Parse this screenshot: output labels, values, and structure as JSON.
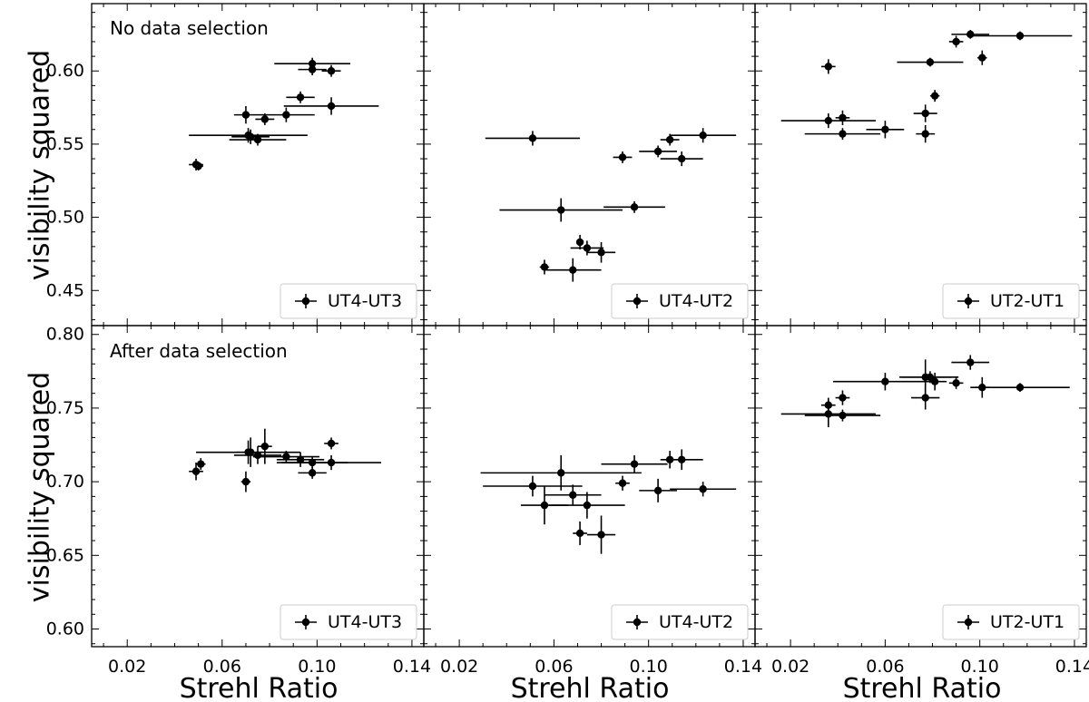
{
  "figure": {
    "xlabel": "Strehl Ratio",
    "ylabel": "visibility squared",
    "xlim": [
      0.005,
      0.145
    ],
    "xticks": [
      0.02,
      0.06,
      0.1,
      0.14
    ],
    "xtick_labels": [
      "0.02",
      "0.06",
      "0.10",
      "0.14"
    ],
    "rows": [
      {
        "annotation": "No data selection",
        "ylim": [
          0.426,
          0.646
        ],
        "yticks": [
          0.45,
          0.5,
          0.55,
          0.6
        ],
        "ytick_labels": [
          "0.45",
          "0.50",
          "0.55",
          "0.60"
        ]
      },
      {
        "annotation": "After data selection",
        "ylim": [
          0.588,
          0.806
        ],
        "yticks": [
          0.6,
          0.65,
          0.7,
          0.75,
          0.8
        ],
        "ytick_labels": [
          "0.60",
          "0.65",
          "0.70",
          "0.75",
          "0.80"
        ]
      }
    ]
  },
  "chart_data": [
    {
      "type": "scatter",
      "panel": "row0-col0",
      "legend": "UT4-UT3",
      "legend_loc": "lower right",
      "points": [
        {
          "x": 0.049,
          "y": 0.536,
          "xerr": 0.003,
          "yerr": 0.004
        },
        {
          "x": 0.05,
          "y": 0.535,
          "xerr": 0.002,
          "yerr": 0.003
        },
        {
          "x": 0.07,
          "y": 0.57,
          "xerr": 0.005,
          "yerr": 0.006
        },
        {
          "x": 0.071,
          "y": 0.556,
          "xerr": 0.025,
          "yerr": 0.005
        },
        {
          "x": 0.072,
          "y": 0.555,
          "xerr": 0.008,
          "yerr": 0.005
        },
        {
          "x": 0.075,
          "y": 0.553,
          "xerr": 0.012,
          "yerr": 0.004
        },
        {
          "x": 0.078,
          "y": 0.567,
          "xerr": 0.004,
          "yerr": 0.004
        },
        {
          "x": 0.087,
          "y": 0.57,
          "xerr": 0.012,
          "yerr": 0.005
        },
        {
          "x": 0.093,
          "y": 0.582,
          "xerr": 0.006,
          "yerr": 0.004
        },
        {
          "x": 0.098,
          "y": 0.605,
          "xerr": 0.016,
          "yerr": 0.004
        },
        {
          "x": 0.098,
          "y": 0.601,
          "xerr": 0.006,
          "yerr": 0.004
        },
        {
          "x": 0.106,
          "y": 0.6,
          "xerr": 0.004,
          "yerr": 0.004
        },
        {
          "x": 0.106,
          "y": 0.576,
          "xerr": 0.02,
          "yerr": 0.006
        }
      ]
    },
    {
      "type": "scatter",
      "panel": "row0-col1",
      "legend": "UT4-UT2",
      "legend_loc": "lower right",
      "points": [
        {
          "x": 0.051,
          "y": 0.554,
          "xerr": 0.02,
          "yerr": 0.005
        },
        {
          "x": 0.056,
          "y": 0.466,
          "xerr": 0.002,
          "yerr": 0.005
        },
        {
          "x": 0.063,
          "y": 0.505,
          "xerr": 0.026,
          "yerr": 0.008
        },
        {
          "x": 0.068,
          "y": 0.464,
          "xerr": 0.012,
          "yerr": 0.008
        },
        {
          "x": 0.071,
          "y": 0.483,
          "xerr": 0.001,
          "yerr": 0.005
        },
        {
          "x": 0.074,
          "y": 0.479,
          "xerr": 0.007,
          "yerr": 0.005
        },
        {
          "x": 0.08,
          "y": 0.476,
          "xerr": 0.006,
          "yerr": 0.007
        },
        {
          "x": 0.089,
          "y": 0.541,
          "xerr": 0.004,
          "yerr": 0.004
        },
        {
          "x": 0.094,
          "y": 0.507,
          "xerr": 0.013,
          "yerr": 0.004
        },
        {
          "x": 0.104,
          "y": 0.545,
          "xerr": 0.008,
          "yerr": 0.004
        },
        {
          "x": 0.109,
          "y": 0.553,
          "xerr": 0.004,
          "yerr": 0.004
        },
        {
          "x": 0.114,
          "y": 0.54,
          "xerr": 0.009,
          "yerr": 0.005
        },
        {
          "x": 0.123,
          "y": 0.556,
          "xerr": 0.014,
          "yerr": 0.005
        }
      ]
    },
    {
      "type": "scatter",
      "panel": "row0-col2",
      "legend": "UT2-UT1",
      "legend_loc": "lower right",
      "points": [
        {
          "x": 0.036,
          "y": 0.603,
          "xerr": 0.003,
          "yerr": 0.005
        },
        {
          "x": 0.036,
          "y": 0.566,
          "xerr": 0.02,
          "yerr": 0.005
        },
        {
          "x": 0.042,
          "y": 0.568,
          "xerr": 0.003,
          "yerr": 0.005
        },
        {
          "x": 0.042,
          "y": 0.557,
          "xerr": 0.016,
          "yerr": 0.004
        },
        {
          "x": 0.06,
          "y": 0.56,
          "xerr": 0.008,
          "yerr": 0.006
        },
        {
          "x": 0.077,
          "y": 0.571,
          "xerr": 0.005,
          "yerr": 0.006
        },
        {
          "x": 0.077,
          "y": 0.557,
          "xerr": 0.004,
          "yerr": 0.006
        },
        {
          "x": 0.079,
          "y": 0.606,
          "xerr": 0.014,
          "yerr": 0.003
        },
        {
          "x": 0.081,
          "y": 0.583,
          "xerr": 0.002,
          "yerr": 0.004
        },
        {
          "x": 0.09,
          "y": 0.62,
          "xerr": 0.003,
          "yerr": 0.004
        },
        {
          "x": 0.096,
          "y": 0.625,
          "xerr": 0.008,
          "yerr": 0.003
        },
        {
          "x": 0.101,
          "y": 0.609,
          "xerr": 0.002,
          "yerr": 0.005
        },
        {
          "x": 0.117,
          "y": 0.624,
          "xerr": 0.022,
          "yerr": 0.003
        }
      ]
    },
    {
      "type": "scatter",
      "panel": "row1-col0",
      "legend": "UT4-UT3",
      "legend_loc": "lower right",
      "points": [
        {
          "x": 0.049,
          "y": 0.707,
          "xerr": 0.003,
          "yerr": 0.006
        },
        {
          "x": 0.051,
          "y": 0.712,
          "xerr": 0.002,
          "yerr": 0.004
        },
        {
          "x": 0.07,
          "y": 0.7,
          "xerr": 0.002,
          "yerr": 0.007
        },
        {
          "x": 0.071,
          "y": 0.72,
          "xerr": 0.022,
          "yerr": 0.008
        },
        {
          "x": 0.072,
          "y": 0.72,
          "xerr": 0.006,
          "yerr": 0.01
        },
        {
          "x": 0.075,
          "y": 0.718,
          "xerr": 0.01,
          "yerr": 0.006
        },
        {
          "x": 0.078,
          "y": 0.724,
          "xerr": 0.003,
          "yerr": 0.012
        },
        {
          "x": 0.087,
          "y": 0.717,
          "xerr": 0.014,
          "yerr": 0.004
        },
        {
          "x": 0.093,
          "y": 0.715,
          "xerr": 0.01,
          "yerr": 0.005
        },
        {
          "x": 0.098,
          "y": 0.713,
          "xerr": 0.015,
          "yerr": 0.004
        },
        {
          "x": 0.098,
          "y": 0.706,
          "xerr": 0.006,
          "yerr": 0.004
        },
        {
          "x": 0.106,
          "y": 0.726,
          "xerr": 0.003,
          "yerr": 0.004
        },
        {
          "x": 0.106,
          "y": 0.713,
          "xerr": 0.021,
          "yerr": 0.005
        }
      ]
    },
    {
      "type": "scatter",
      "panel": "row1-col1",
      "legend": "UT4-UT2",
      "legend_loc": "lower right",
      "points": [
        {
          "x": 0.051,
          "y": 0.697,
          "xerr": 0.021,
          "yerr": 0.007
        },
        {
          "x": 0.056,
          "y": 0.684,
          "xerr": 0.01,
          "yerr": 0.013
        },
        {
          "x": 0.063,
          "y": 0.706,
          "xerr": 0.034,
          "yerr": 0.012
        },
        {
          "x": 0.068,
          "y": 0.691,
          "xerr": 0.012,
          "yerr": 0.007
        },
        {
          "x": 0.071,
          "y": 0.665,
          "xerr": 0.003,
          "yerr": 0.008
        },
        {
          "x": 0.074,
          "y": 0.684,
          "xerr": 0.016,
          "yerr": 0.009
        },
        {
          "x": 0.08,
          "y": 0.664,
          "xerr": 0.006,
          "yerr": 0.013
        },
        {
          "x": 0.089,
          "y": 0.699,
          "xerr": 0.003,
          "yerr": 0.005
        },
        {
          "x": 0.094,
          "y": 0.712,
          "xerr": 0.014,
          "yerr": 0.006
        },
        {
          "x": 0.104,
          "y": 0.694,
          "xerr": 0.008,
          "yerr": 0.008
        },
        {
          "x": 0.109,
          "y": 0.715,
          "xerr": 0.003,
          "yerr": 0.006
        },
        {
          "x": 0.114,
          "y": 0.715,
          "xerr": 0.009,
          "yerr": 0.007
        },
        {
          "x": 0.123,
          "y": 0.695,
          "xerr": 0.014,
          "yerr": 0.005
        }
      ]
    },
    {
      "type": "scatter",
      "panel": "row1-col2",
      "legend": "UT2-UT1",
      "legend_loc": "lower right",
      "points": [
        {
          "x": 0.036,
          "y": 0.752,
          "xerr": 0.003,
          "yerr": 0.005
        },
        {
          "x": 0.036,
          "y": 0.746,
          "xerr": 0.02,
          "yerr": 0.009
        },
        {
          "x": 0.042,
          "y": 0.757,
          "xerr": 0.003,
          "yerr": 0.005
        },
        {
          "x": 0.042,
          "y": 0.745,
          "xerr": 0.016,
          "yerr": 0.004
        },
        {
          "x": 0.06,
          "y": 0.768,
          "xerr": 0.022,
          "yerr": 0.006
        },
        {
          "x": 0.077,
          "y": 0.771,
          "xerr": 0.011,
          "yerr": 0.012
        },
        {
          "x": 0.077,
          "y": 0.757,
          "xerr": 0.006,
          "yerr": 0.008
        },
        {
          "x": 0.079,
          "y": 0.771,
          "xerr": 0.012,
          "yerr": 0.004
        },
        {
          "x": 0.081,
          "y": 0.768,
          "xerr": 0.005,
          "yerr": 0.006
        },
        {
          "x": 0.09,
          "y": 0.767,
          "xerr": 0.003,
          "yerr": 0.004
        },
        {
          "x": 0.096,
          "y": 0.781,
          "xerr": 0.008,
          "yerr": 0.005
        },
        {
          "x": 0.101,
          "y": 0.764,
          "xerr": 0.003,
          "yerr": 0.007
        },
        {
          "x": 0.117,
          "y": 0.764,
          "xerr": 0.021,
          "yerr": 0.003
        }
      ]
    }
  ]
}
